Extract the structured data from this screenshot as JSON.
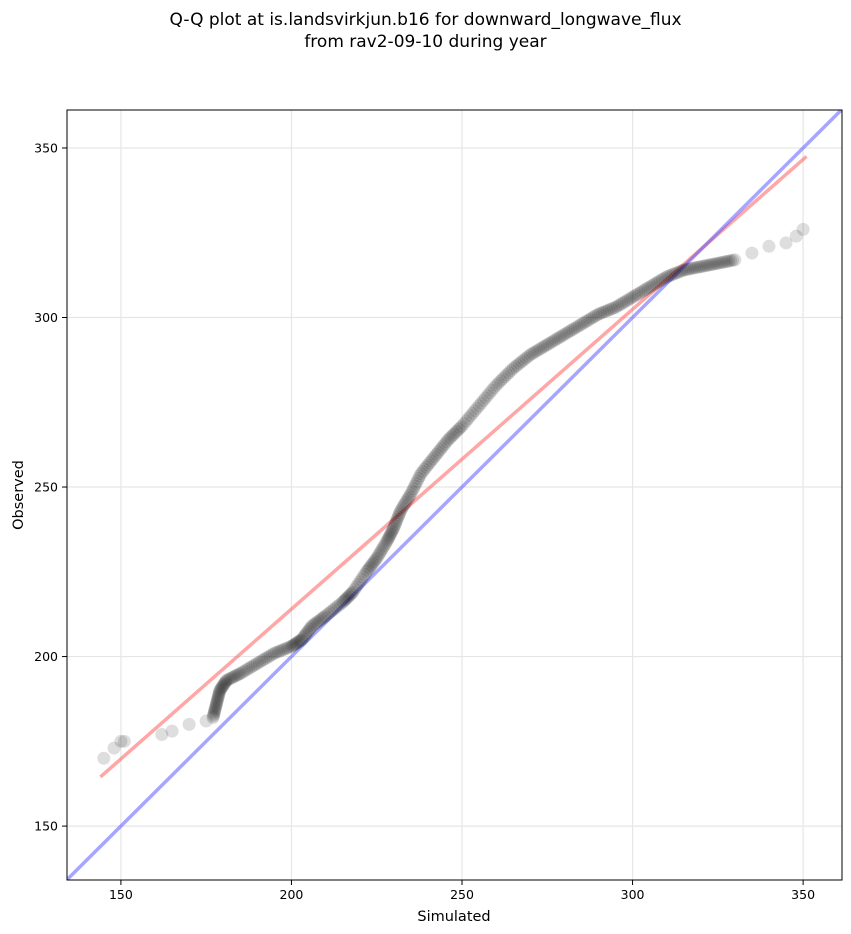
{
  "chart_data": {
    "type": "scatter",
    "title_line1": "Q-Q plot at is.landsvirkjun.b16 for downward_longwave_flux",
    "title_line2": "from rav2-09-10 during year",
    "xlabel": "Simulated",
    "ylabel": "Observed",
    "xlim": [
      134.2,
      361.4
    ],
    "ylim": [
      134.1,
      361.2
    ],
    "xticks": [
      150,
      200,
      250,
      300,
      350
    ],
    "yticks": [
      150,
      200,
      250,
      300,
      350
    ],
    "grid": true,
    "colors": {
      "points": "#000000",
      "fit_line": "#ff4d4d",
      "identity_line": "#4d4dff"
    },
    "fit_line": {
      "x": [
        144,
        351
      ],
      "y": [
        164.5,
        347.5
      ]
    },
    "identity_line": {
      "x": [
        134.2,
        361.4
      ],
      "y": [
        134.2,
        361.4
      ]
    },
    "points": [
      [
        145,
        170
      ],
      [
        148,
        173
      ],
      [
        150,
        175
      ],
      [
        151,
        175
      ],
      [
        162,
        177
      ],
      [
        165,
        178
      ],
      [
        170,
        180
      ],
      [
        175,
        181
      ],
      [
        177,
        182
      ],
      [
        178,
        186
      ],
      [
        179,
        190
      ],
      [
        181,
        193
      ],
      [
        185,
        195
      ],
      [
        190,
        198
      ],
      [
        195,
        201
      ],
      [
        200,
        203
      ],
      [
        203,
        205
      ],
      [
        206,
        209
      ],
      [
        210,
        212
      ],
      [
        215,
        216
      ],
      [
        218,
        219
      ],
      [
        222,
        225
      ],
      [
        225,
        229
      ],
      [
        228,
        234
      ],
      [
        230,
        238
      ],
      [
        232,
        243
      ],
      [
        235,
        248
      ],
      [
        238,
        254
      ],
      [
        242,
        259
      ],
      [
        246,
        264
      ],
      [
        250,
        268
      ],
      [
        255,
        274
      ],
      [
        260,
        280
      ],
      [
        265,
        285
      ],
      [
        270,
        289
      ],
      [
        275,
        292
      ],
      [
        280,
        295
      ],
      [
        285,
        298
      ],
      [
        290,
        301
      ],
      [
        295,
        303
      ],
      [
        300,
        306
      ],
      [
        305,
        309
      ],
      [
        310,
        312
      ],
      [
        315,
        314
      ],
      [
        320,
        315
      ],
      [
        325,
        316
      ],
      [
        330,
        317
      ],
      [
        335,
        319
      ],
      [
        340,
        321
      ],
      [
        345,
        322
      ],
      [
        348,
        324
      ],
      [
        350,
        326
      ]
    ]
  }
}
